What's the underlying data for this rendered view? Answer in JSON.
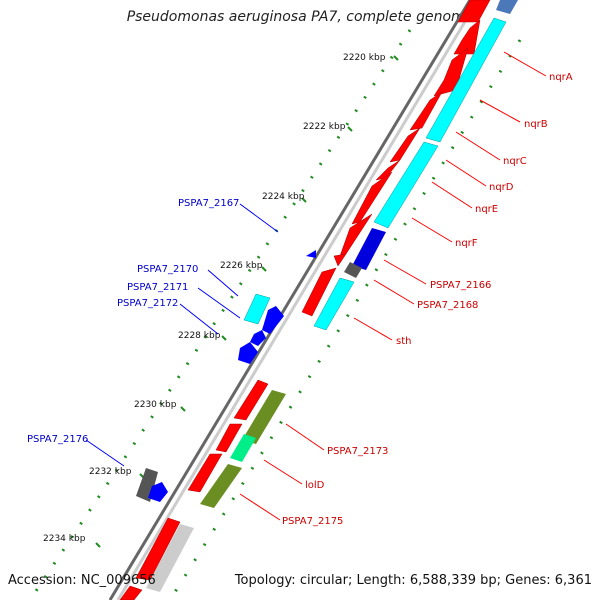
{
  "title": "Pseudomonas aeruginosa PA7, complete genome",
  "footer": {
    "accession_label": "Accession:",
    "accession": "NC_009656",
    "topology_label": "Topology:",
    "topology": "circular",
    "length_label": "Length:",
    "length": "6,588,339 bp",
    "genes_label": "Genes:",
    "genes": "6,361"
  },
  "ticks": [
    "2220 kbp",
    "2222 kbp",
    "2224 kbp",
    "2226 kbp",
    "2228 kbp",
    "2230 kbp",
    "2232 kbp",
    "2234 kbp"
  ],
  "genes": [
    {
      "name": "nqrA",
      "color": "#cc0000"
    },
    {
      "name": "nqrB",
      "color": "#cc0000"
    },
    {
      "name": "nqrC",
      "color": "#cc0000"
    },
    {
      "name": "nqrD",
      "color": "#cc0000"
    },
    {
      "name": "nqrE",
      "color": "#cc0000"
    },
    {
      "name": "nqrF",
      "color": "#cc0000"
    },
    {
      "name": "PSPA7_2166",
      "color": "#cc0000"
    },
    {
      "name": "PSPA7_2168",
      "color": "#cc0000"
    },
    {
      "name": "sth",
      "color": "#cc0000"
    },
    {
      "name": "PSPA7_2173",
      "color": "#cc0000"
    },
    {
      "name": "lolD",
      "color": "#cc0000"
    },
    {
      "name": "PSPA7_2175",
      "color": "#cc0000"
    },
    {
      "name": "PSPA7_2167",
      "color": "#0000cc"
    },
    {
      "name": "PSPA7_2170",
      "color": "#0000cc"
    },
    {
      "name": "PSPA7_2171",
      "color": "#0000cc"
    },
    {
      "name": "PSPA7_2172",
      "color": "#0000cc"
    },
    {
      "name": "PSPA7_2176",
      "color": "#0000cc"
    }
  ],
  "colors": {
    "forward_cds": "#ff0000",
    "reverse_cds": "#0000ff",
    "cog_cyan": "#00ffff",
    "cog_olive": "#6b8e23",
    "cog_green": "#00ee88",
    "cog_gray": "#555555",
    "backbone": "#999999",
    "tick": "#228b22"
  }
}
